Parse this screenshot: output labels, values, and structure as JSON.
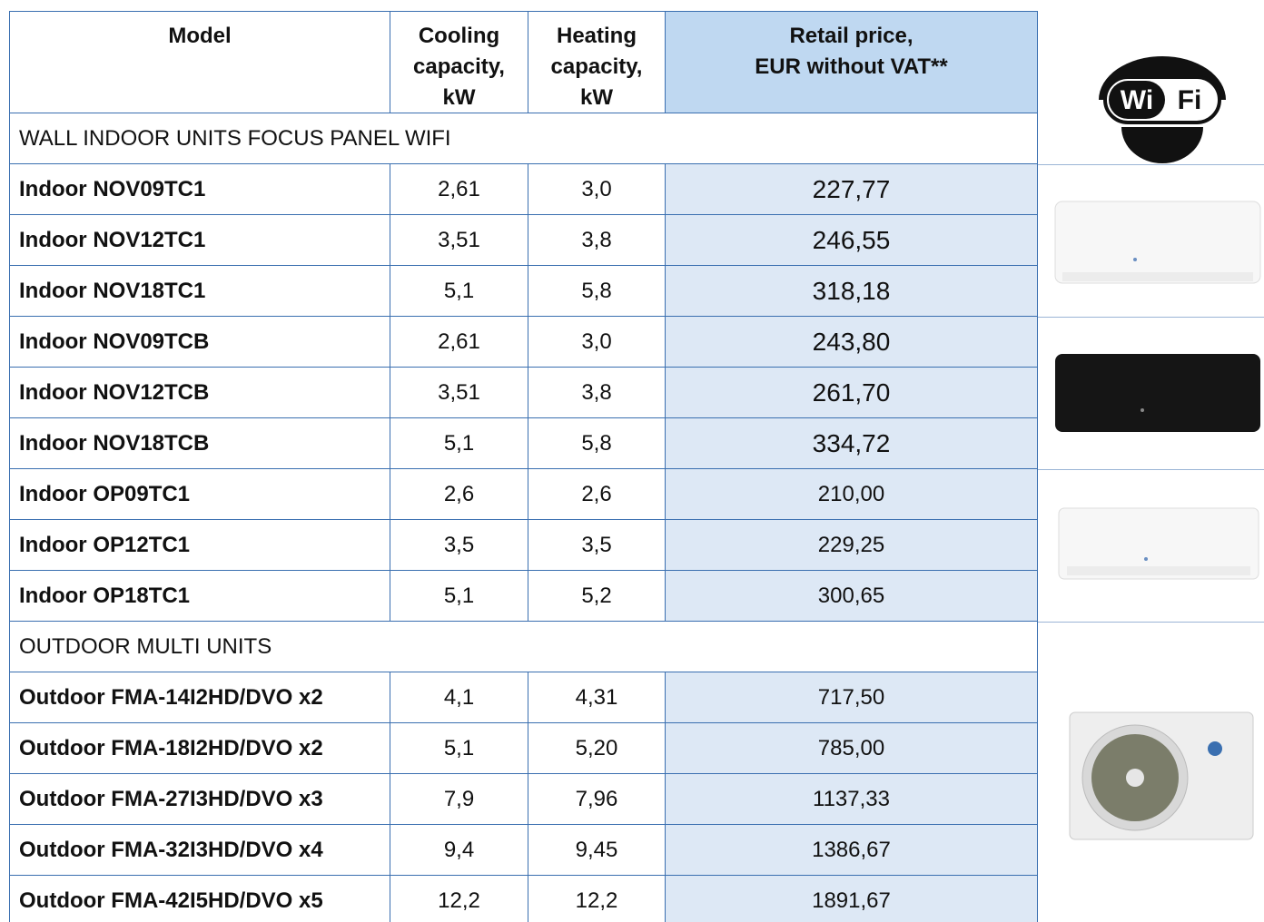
{
  "table": {
    "headers": [
      "Model",
      "Cooling\ncapacity,\nkW",
      "Heating\ncapacity,\nkW",
      "Retail price,\nEUR without VAT**"
    ],
    "sections": [
      {
        "title": "WALL INDOOR UNITS FOCUS PANEL WIFI",
        "rows": [
          [
            "Indoor NOV09TC1",
            "2,61",
            "3,0",
            "227,77"
          ],
          [
            "Indoor NOV12TC1",
            "3,51",
            "3,8",
            "246,55"
          ],
          [
            "Indoor NOV18TC1",
            "5,1",
            "5,8",
            "318,18"
          ],
          [
            "Indoor NOV09TCB",
            "2,61",
            "3,0",
            "243,80"
          ],
          [
            "Indoor NOV12TCB",
            "3,51",
            "3,8",
            "261,70"
          ],
          [
            "Indoor NOV18TCB",
            "5,1",
            "5,8",
            "334,72"
          ],
          [
            "Indoor OP09TC1",
            "2,6",
            "2,6",
            "210,00"
          ],
          [
            "Indoor OP12TC1",
            "3,5",
            "3,5",
            "229,25"
          ],
          [
            "Indoor OP18TC1",
            "5,1",
            "5,2",
            "300,65"
          ]
        ]
      },
      {
        "title": "OUTDOOR MULTI UNITS",
        "rows": [
          [
            "Outdoor FMA-14I2HD/DVO x2",
            "4,1",
            "4,31",
            "717,50"
          ],
          [
            "Outdoor FMA-18I2HD/DVO x2",
            "5,1",
            "5,20",
            "785,00"
          ],
          [
            "Outdoor FMA-27I3HD/DVO x3",
            "7,9",
            "7,96",
            "1137,33"
          ],
          [
            "Outdoor FMA-32I3HD/DVO x4",
            "9,4",
            "9,45",
            "1386,67"
          ],
          [
            "Outdoor FMA-42I5HD/DVO x5",
            "12,2",
            "12,2",
            "1891,67"
          ]
        ]
      }
    ]
  },
  "logo": {
    "left": "Wi",
    "right": "Fi"
  }
}
